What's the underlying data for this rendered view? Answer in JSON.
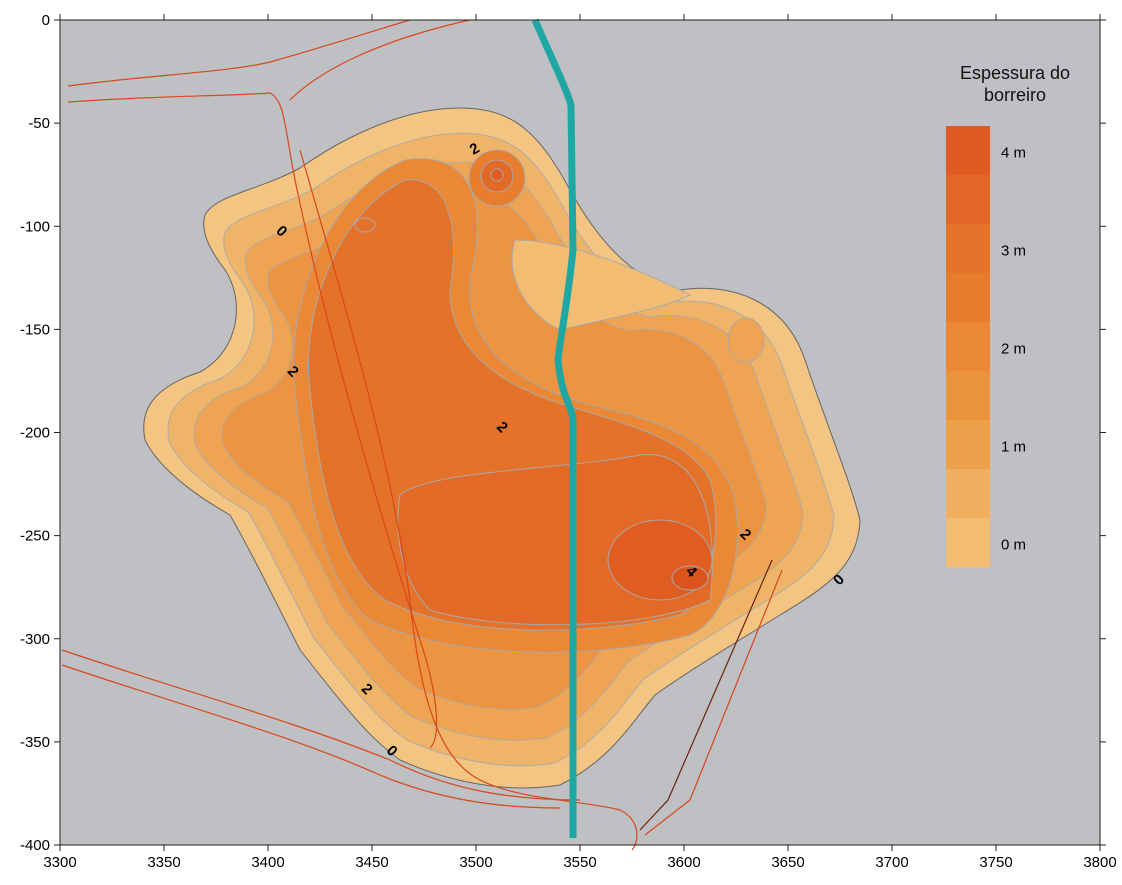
{
  "chart_data": {
    "type": "contour",
    "xlim": [
      3300,
      3800
    ],
    "ylim": [
      -400,
      0
    ],
    "xticks": [
      3300,
      3350,
      3400,
      3450,
      3500,
      3550,
      3600,
      3650,
      3700,
      3750,
      3800
    ],
    "yticks": [
      0,
      -50,
      -100,
      -150,
      -200,
      -250,
      -300,
      -350,
      -400
    ],
    "background": "#bec0c4",
    "legend": {
      "title": "Espessura do borreiro",
      "labels": [
        "4 m",
        "3 m",
        "2 m",
        "1 m",
        "0 m"
      ],
      "colors": [
        "#e05a21",
        "#e36626",
        "#e5712a",
        "#e87c2e",
        "#ea8835",
        "#ec933e",
        "#eea14c",
        "#f0af5e",
        "#f2bd73"
      ]
    },
    "contour_labels": [
      {
        "value": 2,
        "x": 3499,
        "y": -62
      },
      {
        "value": 0,
        "x": 3407,
        "y": -102
      },
      {
        "value": 2,
        "x": 3412.5,
        "y": -170
      },
      {
        "value": 2,
        "x": 3513,
        "y": -197
      },
      {
        "value": 2,
        "x": 3630,
        "y": -249
      },
      {
        "value": 4,
        "x": 3604,
        "y": -267
      },
      {
        "value": 0,
        "x": 3674,
        "y": -271
      },
      {
        "value": 2,
        "x": 3448,
        "y": -324
      },
      {
        "value": 0,
        "x": 3460,
        "y": -354
      }
    ]
  }
}
